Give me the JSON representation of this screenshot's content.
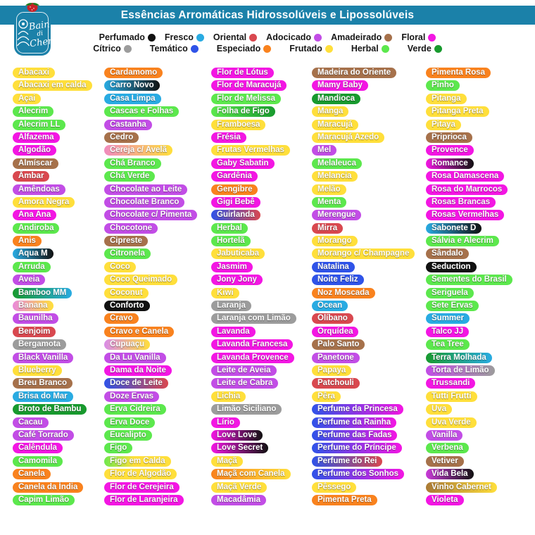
{
  "header": {
    "title": "Essências Arromáticas Hidrossolúveis e Lipossolúveis",
    "bg_color": "#1B81A9"
  },
  "logo": {
    "line1": "Bain",
    "line2": "di",
    "line3": "Chero"
  },
  "categories": {
    "perfumado": "#111111",
    "fresco": "#29ABE2",
    "oriental": "#D9484F",
    "adocicado": "#C24DE6",
    "amadeirado": "#A6714B",
    "floral": "#F316E3",
    "citrico": "#9C9C9C",
    "tematico": "#2F53E8",
    "especiado": "#F9821E",
    "frutado": "#FFDF3B",
    "herbal": "#5CE84D",
    "verde": "#189A2E"
  },
  "legend": {
    "rows": [
      [
        {
          "label": "Perfumado",
          "key": "perfumado"
        },
        {
          "label": "Fresco",
          "key": "fresco"
        },
        {
          "label": "Oriental",
          "key": "oriental"
        },
        {
          "label": "Adocicado",
          "key": "adocicado"
        },
        {
          "label": "Amadeirado",
          "key": "amadeirado"
        },
        {
          "label": "Floral",
          "key": "floral"
        }
      ],
      [
        {
          "label": "Cítrico",
          "key": "citrico"
        },
        {
          "label": "Temático",
          "key": "tematico"
        },
        {
          "label": "Especiado",
          "key": "especiado"
        },
        {
          "label": "Frutado",
          "key": "frutado"
        },
        {
          "label": "Herbal",
          "key": "herbal"
        },
        {
          "label": "Verde",
          "key": "verde"
        }
      ]
    ]
  },
  "columns": [
    [
      {
        "t": "Abacaxi",
        "c": "frutado"
      },
      {
        "t": "Abacaxi em calda",
        "c": "frutado"
      },
      {
        "t": "Açai",
        "c": "frutado"
      },
      {
        "t": "Alecrim",
        "c": "herbal"
      },
      {
        "t": "Alecrim LL",
        "c": "herbal"
      },
      {
        "t": "Alfazema",
        "c": "floral"
      },
      {
        "t": "Algodão",
        "c": "floral"
      },
      {
        "t": "Almíscar",
        "c": "amadeirado"
      },
      {
        "t": "Âmbar",
        "c": "oriental"
      },
      {
        "t": "Amêndoas",
        "c": "adocicado"
      },
      {
        "t": "Amora Negra",
        "c": "frutado"
      },
      {
        "t": "Ana Ana",
        "c": "floral"
      },
      {
        "t": "Andiroba",
        "c": "herbal"
      },
      {
        "t": "Anis",
        "c": "especiado"
      },
      {
        "t": "Aqua M",
        "g": [
          "#29ABE2",
          "#111111"
        ]
      },
      {
        "t": "Arruda",
        "c": "herbal"
      },
      {
        "t": "Aveia",
        "c": "adocicado"
      },
      {
        "t": "Bamboo MM",
        "g": [
          "#189A2E",
          "#29ABE2"
        ]
      },
      {
        "t": "Banana",
        "g": [
          "#E989DB",
          "#FFDF3B"
        ]
      },
      {
        "t": "Baunilha",
        "c": "adocicado"
      },
      {
        "t": "Benjoim",
        "c": "oriental"
      },
      {
        "t": "Bergamota",
        "c": "citrico"
      },
      {
        "t": "Black Vanilla",
        "c": "adocicado"
      },
      {
        "t": "Blueberry",
        "c": "frutado"
      },
      {
        "t": "Breu Branco",
        "c": "amadeirado"
      },
      {
        "t": "Brisa do Mar",
        "c": "fresco"
      },
      {
        "t": "Broto de Bambu",
        "c": "verde"
      },
      {
        "t": "Cacau",
        "c": "adocicado"
      },
      {
        "t": "Café Torrado",
        "c": "adocicado"
      },
      {
        "t": "Calêndula",
        "c": "floral"
      },
      {
        "t": "Camomila",
        "c": "herbal"
      },
      {
        "t": "Canela",
        "c": "especiado"
      },
      {
        "t": "Canela da Índia",
        "c": "especiado"
      },
      {
        "t": "Capim Limão",
        "c": "herbal"
      }
    ],
    [
      {
        "t": "Cardamomo",
        "c": "especiado"
      },
      {
        "t": "Carro Novo",
        "g": [
          "#29ABE2",
          "#111111"
        ]
      },
      {
        "t": "Casa Limpa",
        "c": "fresco"
      },
      {
        "t": "Cascas e Folhas",
        "c": "herbal"
      },
      {
        "t": "Castanha",
        "c": "adocicado"
      },
      {
        "t": "Cedro",
        "c": "amadeirado"
      },
      {
        "t": "Cereja c/ Avelã",
        "g": [
          "#F08BBE",
          "#FFDF3B"
        ]
      },
      {
        "t": "Chá Branco",
        "c": "herbal"
      },
      {
        "t": "Chá Verde",
        "c": "herbal"
      },
      {
        "t": "Chocolate ao Leite",
        "c": "adocicado"
      },
      {
        "t": "Chocolate Branco",
        "c": "adocicado"
      },
      {
        "t": "Chocolate c/ Pimenta",
        "c": "adocicado"
      },
      {
        "t": "Chocotone",
        "c": "adocicado"
      },
      {
        "t": "Cipreste",
        "c": "amadeirado"
      },
      {
        "t": "Citronela",
        "c": "herbal"
      },
      {
        "t": "Coco",
        "c": "frutado"
      },
      {
        "t": "Coco Queimado",
        "c": "frutado"
      },
      {
        "t": "Coconut",
        "c": "frutado"
      },
      {
        "t": "Conforto",
        "c": "perfumado"
      },
      {
        "t": "Cravo",
        "c": "especiado"
      },
      {
        "t": "Cravo e Canela",
        "c": "especiado"
      },
      {
        "t": "Cupuaçu",
        "g": [
          "#D98BE8",
          "#FFDF3B"
        ]
      },
      {
        "t": "Da Lu Vanilla",
        "c": "adocicado"
      },
      {
        "t": "Dama da Noite",
        "c": "floral"
      },
      {
        "t": "Doce de Leite",
        "g": [
          "#2F53E8",
          "#D9484F"
        ]
      },
      {
        "t": "Doze Ervas",
        "c": "adocicado"
      },
      {
        "t": "Erva Cidreira",
        "c": "herbal"
      },
      {
        "t": "Erva Doce",
        "c": "herbal"
      },
      {
        "t": "Eucalipto",
        "c": "herbal"
      },
      {
        "t": "Figo",
        "c": "herbal"
      },
      {
        "t": "Figo em Calda",
        "g": [
          "#6FE84D",
          "#FFDF3B"
        ],
        "gp": "45%"
      },
      {
        "t": "Flor de Algodão",
        "c": "frutado"
      },
      {
        "t": "Flor de Cerejeira",
        "c": "floral"
      },
      {
        "t": "Flor de Laranjeira",
        "c": "floral"
      }
    ],
    [
      {
        "t": "Flor de Lótus",
        "c": "floral"
      },
      {
        "t": "Flor de Maracujá",
        "c": "floral"
      },
      {
        "t": "Flor de Melissa",
        "c": "herbal"
      },
      {
        "t": "Folha de Figo",
        "g": [
          "#5CE84D",
          "#189A2E"
        ]
      },
      {
        "t": "Framboesa",
        "c": "frutado"
      },
      {
        "t": "Frésia",
        "c": "floral"
      },
      {
        "t": "Frutas Vermelhas",
        "c": "frutado"
      },
      {
        "t": "Gaby Sabatin",
        "c": "floral"
      },
      {
        "t": "Gardênia",
        "c": "floral"
      },
      {
        "t": "Gengibre",
        "c": "especiado"
      },
      {
        "t": "Gigi Bebê",
        "c": "floral"
      },
      {
        "t": "Guirlanda",
        "g": [
          "#2F53E8",
          "#D9484F"
        ]
      },
      {
        "t": "Herbal",
        "c": "herbal"
      },
      {
        "t": "Hortelã",
        "c": "herbal"
      },
      {
        "t": "Jabuticaba",
        "c": "frutado"
      },
      {
        "t": "Jasmim",
        "c": "floral"
      },
      {
        "t": "Jony Jony",
        "c": "floral"
      },
      {
        "t": "Kiwi",
        "c": "frutado"
      },
      {
        "t": "Laranja",
        "c": "citrico"
      },
      {
        "t": "Laranja com Limão",
        "c": "citrico"
      },
      {
        "t": "Lavanda",
        "c": "floral"
      },
      {
        "t": "Lavanda Francesa",
        "c": "floral"
      },
      {
        "t": "Lavanda Provence",
        "c": "floral"
      },
      {
        "t": "Leite de Aveia",
        "c": "adocicado"
      },
      {
        "t": "Leite de Cabra",
        "c": "adocicado"
      },
      {
        "t": "Lichia",
        "c": "frutado"
      },
      {
        "t": "Limão Siciliano",
        "c": "citrico"
      },
      {
        "t": "Lírio",
        "c": "floral"
      },
      {
        "t": "Love Love",
        "g": [
          "#F316E3",
          "#111111"
        ]
      },
      {
        "t": "Love Secret",
        "g": [
          "#F316E3",
          "#111111"
        ]
      },
      {
        "t": "Maçã",
        "c": "frutado"
      },
      {
        "t": "Maçã com Canela",
        "g": [
          "#F9821E",
          "#FFDF3B"
        ]
      },
      {
        "t": "Maçã Verde",
        "c": "frutado"
      },
      {
        "t": "Macadâmia",
        "c": "adocicado"
      }
    ],
    [
      {
        "t": "Madeira do Oriente",
        "c": "amadeirado"
      },
      {
        "t": "Mamy Baby",
        "c": "floral"
      },
      {
        "t": "Mandioca",
        "c": "verde"
      },
      {
        "t": "Manga",
        "c": "frutado"
      },
      {
        "t": "Maracujá",
        "c": "frutado"
      },
      {
        "t": "Maracujá Azedo",
        "c": "frutado"
      },
      {
        "t": "Mel",
        "c": "adocicado"
      },
      {
        "t": "Melaleuca",
        "c": "herbal"
      },
      {
        "t": "Melancia",
        "c": "frutado"
      },
      {
        "t": "Melão",
        "c": "frutado"
      },
      {
        "t": "Menta",
        "c": "herbal"
      },
      {
        "t": "Merengue",
        "c": "adocicado"
      },
      {
        "t": "Mirra",
        "c": "oriental"
      },
      {
        "t": "Morango",
        "c": "frutado"
      },
      {
        "t": "Morango c/ Champagne",
        "c": "frutado"
      },
      {
        "t": "Natalina",
        "c": "tematico"
      },
      {
        "t": "Noite Feliz",
        "c": "tematico"
      },
      {
        "t": "Noz Moscada",
        "c": "especiado"
      },
      {
        "t": "Ocean",
        "c": "fresco"
      },
      {
        "t": "Olíbano",
        "c": "oriental"
      },
      {
        "t": "Orquídea",
        "c": "floral"
      },
      {
        "t": "Palo Santo",
        "c": "amadeirado"
      },
      {
        "t": "Panetone",
        "c": "adocicado"
      },
      {
        "t": "Papaya",
        "c": "frutado"
      },
      {
        "t": "Patchouli",
        "c": "oriental"
      },
      {
        "t": "Pêra",
        "c": "frutado"
      },
      {
        "t": "Perfume da Princesa",
        "g": [
          "#2F53E8",
          "#F316E3"
        ]
      },
      {
        "t": "Perfume da Rainha",
        "g": [
          "#2F53E8",
          "#F316E3"
        ]
      },
      {
        "t": "Perfume das Fadas",
        "g": [
          "#2F53E8",
          "#F316E3"
        ]
      },
      {
        "t": "Perfume do Príncipe",
        "g": [
          "#2F53E8",
          "#F316E3"
        ]
      },
      {
        "t": "Perfume do Rei",
        "g": [
          "#2F53E8",
          "#D9484F"
        ]
      },
      {
        "t": "Perfume dos Sonhos",
        "g": [
          "#2F53E8",
          "#F316E3"
        ]
      },
      {
        "t": "Pêssego",
        "c": "frutado"
      },
      {
        "t": "Pimenta Preta",
        "c": "especiado"
      }
    ],
    [
      {
        "t": "Pimenta Rosa",
        "c": "especiado"
      },
      {
        "t": "Pinho",
        "c": "herbal"
      },
      {
        "t": "Pitanga",
        "c": "frutado"
      },
      {
        "t": "Pitanga Preta",
        "c": "frutado"
      },
      {
        "t": "Pitaya",
        "c": "frutado"
      },
      {
        "t": "Priprioca",
        "c": "amadeirado"
      },
      {
        "t": "Provence",
        "c": "floral"
      },
      {
        "t": "Romance",
        "g": [
          "#F316E3",
          "#111111"
        ]
      },
      {
        "t": "Rosa Damascena",
        "c": "floral"
      },
      {
        "t": "Rosa do Marrocos",
        "c": "floral"
      },
      {
        "t": "Rosas Brancas",
        "c": "floral"
      },
      {
        "t": "Rosas Vermelhas",
        "c": "floral"
      },
      {
        "t": "Sabonete D",
        "g": [
          "#29ABE2",
          "#111111"
        ]
      },
      {
        "t": "Sálvia e Alecrim",
        "c": "herbal"
      },
      {
        "t": "Sândalo",
        "c": "amadeirado"
      },
      {
        "t": "Seduction",
        "c": "perfumado"
      },
      {
        "t": "Sementes do Brasil",
        "c": "herbal"
      },
      {
        "t": "Seriguela",
        "c": "herbal"
      },
      {
        "t": "Sete Ervas",
        "c": "herbal"
      },
      {
        "t": "Summer",
        "c": "fresco"
      },
      {
        "t": "Talco JJ",
        "c": "floral"
      },
      {
        "t": "Tea Tree",
        "c": "herbal"
      },
      {
        "t": "Terra Molhada",
        "g": [
          "#189A2E",
          "#29ABE2"
        ]
      },
      {
        "t": "Torta de Limão",
        "g": [
          "#C24DE6",
          "#9C9C9C"
        ]
      },
      {
        "t": "Trussandi",
        "c": "floral"
      },
      {
        "t": "Tutti Frutti",
        "c": "frutado"
      },
      {
        "t": "Uva",
        "c": "frutado"
      },
      {
        "t": "Uva Verde",
        "c": "frutado"
      },
      {
        "t": "Vanilla",
        "c": "adocicado"
      },
      {
        "t": "Verbena",
        "c": "herbal"
      },
      {
        "t": "Vetiver",
        "c": "amadeirado"
      },
      {
        "t": "Vida Bela",
        "g": [
          "#C93BD8",
          "#111111"
        ]
      },
      {
        "t": "Vinho Cabernet",
        "g": [
          "#AA7A35",
          "#FFDF3B"
        ]
      },
      {
        "t": "Violeta",
        "c": "floral"
      }
    ]
  ]
}
